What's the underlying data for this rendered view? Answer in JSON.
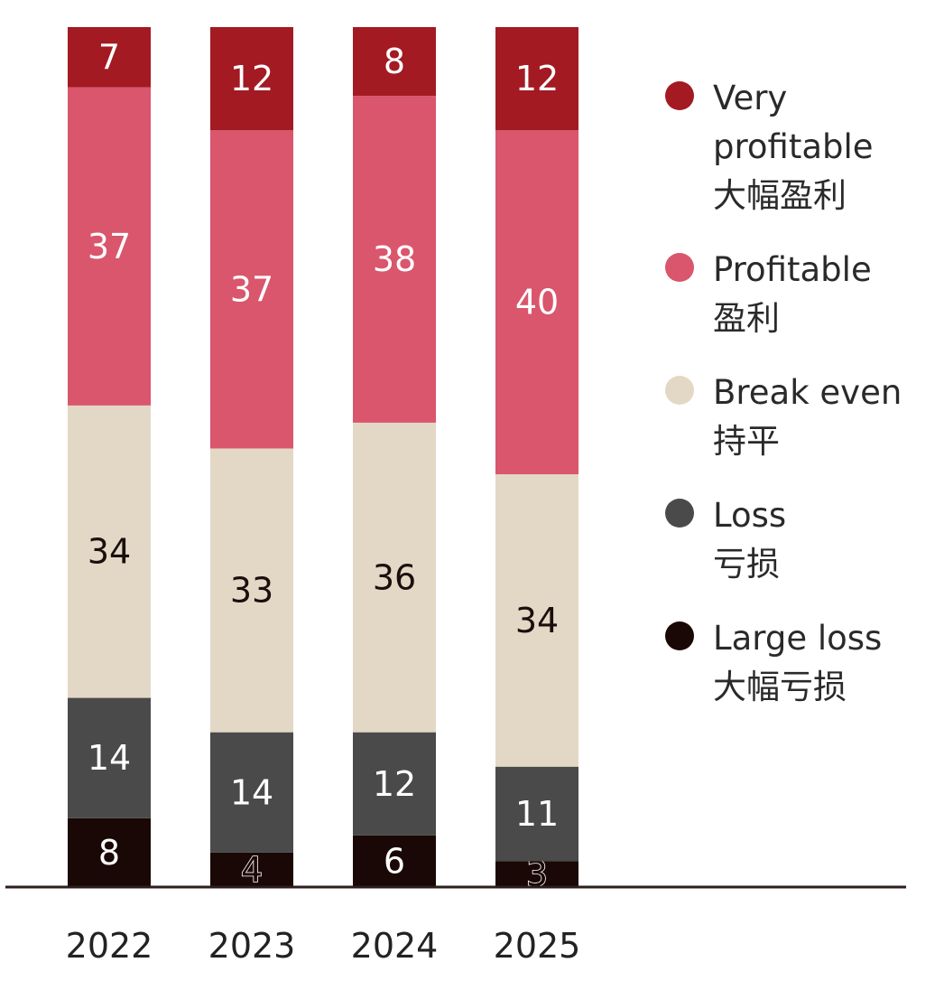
{
  "chart_data": {
    "type": "bar",
    "stacked": true,
    "percent": true,
    "categories": [
      "2022",
      "2023",
      "2024",
      "2025"
    ],
    "series": [
      {
        "name": "Large loss",
        "name_cn": "大幅亏损",
        "color": "#1a0806",
        "label_style": "light",
        "values": [
          8,
          4,
          6,
          3
        ]
      },
      {
        "name": "Loss",
        "name_cn": "亏损",
        "color": "#4a4a4a",
        "label_style": "light",
        "values": [
          14,
          14,
          12,
          11
        ]
      },
      {
        "name": "Break even",
        "name_cn": "持平",
        "color": "#e3d8c6",
        "label_style": "dark",
        "values": [
          34,
          33,
          36,
          34
        ]
      },
      {
        "name": "Profitable",
        "name_cn": "盈利",
        "color": "#d9566d",
        "label_style": "light",
        "values": [
          37,
          37,
          38,
          40
        ]
      },
      {
        "name": "Very profitable",
        "name_cn": "大幅盈利",
        "color": "#a31a22",
        "label_style": "light",
        "values": [
          7,
          12,
          8,
          12
        ]
      }
    ],
    "ylim": [
      0,
      100
    ],
    "legend_position": "right",
    "title": "",
    "xlabel": "",
    "ylabel": ""
  },
  "legend": [
    {
      "lines": [
        "Very",
        "profitable",
        "大幅盈利"
      ],
      "color": "#a31a22"
    },
    {
      "lines": [
        "Profitable",
        "盈利"
      ],
      "color": "#d9566d"
    },
    {
      "lines": [
        "Break even",
        "持平"
      ],
      "color": "#e3d8c6"
    },
    {
      "lines": [
        "Loss",
        "亏损"
      ],
      "color": "#4a4a4a"
    },
    {
      "lines": [
        "Large loss",
        "大幅亏损"
      ],
      "color": "#1a0806"
    }
  ]
}
